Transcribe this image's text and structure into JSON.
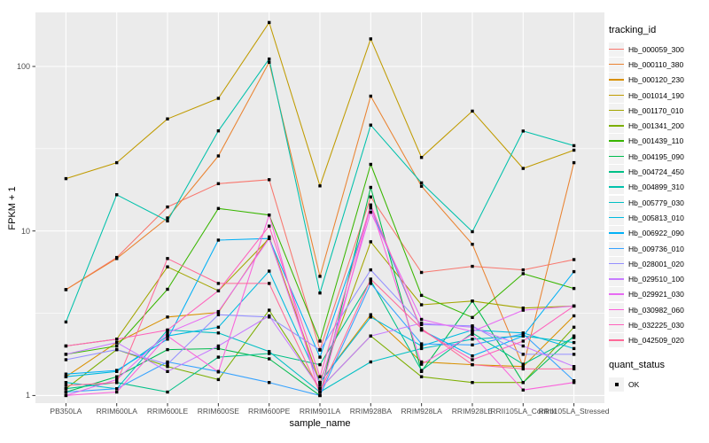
{
  "figure": {
    "x_axis": {
      "title": "sample_name"
    },
    "y_axis": {
      "title": "FPKM + 1"
    },
    "legend_tracking": {
      "title": "tracking_id"
    },
    "legend_quant": {
      "title": "quant_status",
      "items": [
        {
          "label": "OK",
          "marker": "black-square"
        }
      ]
    }
  },
  "chart_data": {
    "type": "line",
    "title": "",
    "xlabel": "sample_name",
    "ylabel": "FPKM + 1",
    "y_scale": "log10",
    "ylim": [
      0.9,
      215
    ],
    "y_major_ticks": [
      1,
      10,
      100
    ],
    "y_tick_labels": [
      "1",
      "10",
      "100"
    ],
    "y_minor_gridlines": [
      3.162,
      31.62
    ],
    "grid": true,
    "legend_position": "right",
    "panel_bg": "#EBEBEB",
    "grid_color": "#FFFFFF",
    "axis_text_color": "#4D4D4D",
    "point_color": "#000000",
    "point_shape": "square",
    "categories": [
      "PB350LA",
      "RRIM600LA",
      "RRIM600LE",
      "RRIM600SE",
      "RRIM600PE",
      "RRIM901LA",
      "RRIM928BA",
      "RRIM928LA",
      "RRIM928LE",
      "RRII105LA_Control",
      "RRII105LA_Stressed"
    ],
    "series": [
      {
        "name": "Hb_000059_300",
        "color": "#F8766D",
        "values": [
          4.4,
          6.9,
          14,
          19.4,
          20.5,
          1.9,
          16.1,
          5.6,
          6.1,
          5.8,
          6.7
        ]
      },
      {
        "name": "Hb_000110_380",
        "color": "#EA8331",
        "values": [
          4.4,
          6.8,
          12,
          28.6,
          106,
          5.3,
          66,
          18.7,
          8.3,
          1.5,
          26
        ]
      },
      {
        "name": "Hb_000120_230",
        "color": "#D89000",
        "values": [
          1.3,
          2.1,
          3.0,
          3.2,
          9.2,
          1.2,
          3.1,
          1.6,
          1.54,
          1.5,
          3.05
        ]
      },
      {
        "name": "Hb_001014_190",
        "color": "#C09B00",
        "values": [
          20.8,
          26,
          48,
          64,
          185,
          18.8,
          147,
          28,
          53.5,
          24,
          31
        ]
      },
      {
        "name": "Hb_001170_010",
        "color": "#A3A500",
        "values": [
          2.0,
          2.2,
          6.05,
          4.33,
          9.0,
          1.2,
          8.6,
          3.56,
          3.75,
          3.4,
          3.5
        ]
      },
      {
        "name": "Hb_001341_200",
        "color": "#7CAE00",
        "values": [
          1.1,
          1.9,
          1.5,
          1.25,
          3.3,
          1.1,
          2.3,
          1.3,
          1.2,
          1.2,
          2.6
        ]
      },
      {
        "name": "Hb_001439_110",
        "color": "#39B600",
        "values": [
          1.78,
          2.0,
          4.42,
          13.7,
          12.5,
          2.14,
          25.4,
          4.06,
          2.98,
          5.5,
          4.47
        ]
      },
      {
        "name": "Hb_004195_090",
        "color": "#00BB4E",
        "values": [
          1.05,
          1.3,
          1.9,
          1.93,
          1.67,
          1.0,
          18.4,
          1.4,
          3.75,
          1.2,
          2.3
        ]
      },
      {
        "name": "Hb_004724_450",
        "color": "#00C087",
        "values": [
          1.1,
          1.2,
          1.05,
          1.71,
          1.8,
          1.54,
          5.0,
          1.42,
          2.4,
          1.55,
          2.25
        ]
      },
      {
        "name": "Hb_004899_310",
        "color": "#00C1AB",
        "values": [
          2.8,
          16.6,
          11.5,
          40.6,
          111,
          4.2,
          44,
          19.6,
          9.9,
          40.5,
          33
        ]
      },
      {
        "name": "Hb_005779_030",
        "color": "#00BFC4",
        "values": [
          1.2,
          1.1,
          2.5,
          2.4,
          1.85,
          1.05,
          1.6,
          1.93,
          2.2,
          2.3,
          2.1
        ]
      },
      {
        "name": "Hb_005813_010",
        "color": "#00BAE0",
        "values": [
          1.3,
          1.4,
          2.3,
          2.6,
          5.7,
          1.2,
          3.0,
          2.0,
          2.5,
          2.4,
          1.93
        ]
      },
      {
        "name": "Hb_006922_090",
        "color": "#00B0F6",
        "values": [
          1.35,
          1.42,
          2.2,
          8.8,
          9.0,
          1.71,
          13.8,
          2.5,
          1.74,
          2.3,
          5.66
        ]
      },
      {
        "name": "Hb_009736_010",
        "color": "#35A2FF",
        "values": [
          1.05,
          1.1,
          1.6,
          1.4,
          1.2,
          1.0,
          4.8,
          2.06,
          2.03,
          2.37,
          1.23
        ]
      },
      {
        "name": "Hb_028001_020",
        "color": "#9590FF",
        "values": [
          1.65,
          1.9,
          1.55,
          3.1,
          3.0,
          1.89,
          5.8,
          2.7,
          2.65,
          1.78,
          1.78
        ]
      },
      {
        "name": "Hb_029510_100",
        "color": "#C77CFF",
        "values": [
          1.78,
          2.1,
          1.4,
          2.0,
          3.05,
          1.1,
          2.3,
          2.75,
          2.6,
          2.0,
          1.5
        ]
      },
      {
        "name": "Hb_029921_030",
        "color": "#E76BF3",
        "values": [
          1.0,
          1.25,
          2.4,
          3.24,
          9.0,
          1.15,
          13.0,
          2.9,
          2.45,
          3.3,
          3.5
        ]
      },
      {
        "name": "Hb_030982_060",
        "color": "#FA62DB",
        "values": [
          1.0,
          1.05,
          2.3,
          1.39,
          12.5,
          1.0,
          14.2,
          1.55,
          2.35,
          1.08,
          1.2
        ]
      },
      {
        "name": "Hb_032225_030",
        "color": "#FF62BC",
        "values": [
          2.0,
          2.2,
          2.5,
          4.33,
          10.7,
          1.3,
          14.4,
          2.5,
          1.65,
          2.14,
          3.5
        ]
      },
      {
        "name": "Hb_042509_020",
        "color": "#FF6A98",
        "values": [
          1.15,
          1.2,
          6.8,
          4.8,
          4.8,
          1.05,
          5.1,
          2.55,
          1.54,
          1.45,
          1.45
        ]
      }
    ]
  }
}
